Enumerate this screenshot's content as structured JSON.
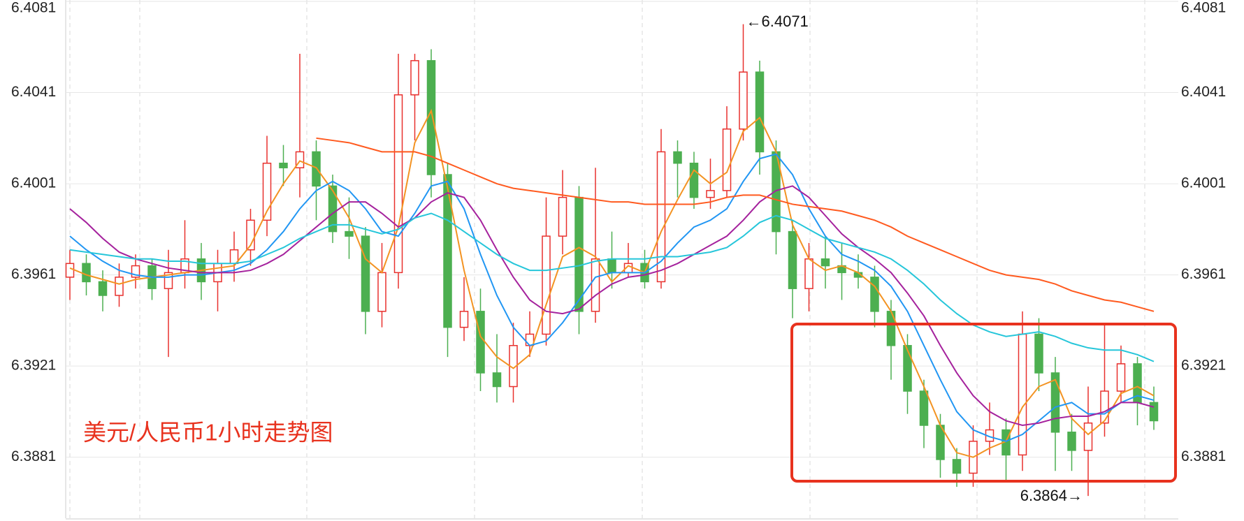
{
  "chart_data": {
    "type": "candlestick",
    "title": "美元/人民币1小时走势图",
    "ylim": [
      6.3857,
      6.4081
    ],
    "yticks": [
      6.3881,
      6.3921,
      6.3961,
      6.4001,
      6.4041,
      6.4081
    ],
    "grid": true,
    "up_color": "#e8312e",
    "down_color": "#4caf50",
    "open": [
      6.396,
      6.3966,
      6.3958,
      6.3952,
      6.396,
      6.3965,
      6.3955,
      6.3962,
      6.3968,
      6.3958,
      6.3966,
      6.3972,
      6.3985,
      6.401,
      6.4008,
      6.4015,
      6.4,
      6.398,
      6.3978,
      6.3945,
      6.3962,
      6.404,
      6.4055,
      6.4005,
      6.3938,
      6.3945,
      6.3918,
      6.3912,
      6.393,
      6.3935,
      6.3978,
      6.3995,
      6.3945,
      6.3968,
      6.3962,
      6.3966,
      6.3958,
      6.4015,
      6.401,
      6.3995,
      6.3998,
      6.4025,
      6.405,
      6.4015,
      6.398,
      6.3955,
      6.3968,
      6.3965,
      6.3962,
      6.396,
      6.3945,
      6.393,
      6.391,
      6.3895,
      6.388,
      6.3874,
      6.3888,
      6.3893,
      6.3882,
      6.3935,
      6.3918,
      6.3892,
      6.3884,
      6.3896,
      6.391,
      6.3922,
      6.3905
    ],
    "high": [
      6.3972,
      6.397,
      6.3963,
      6.3966,
      6.397,
      6.3968,
      6.3972,
      6.3985,
      6.3975,
      6.3972,
      6.398,
      6.399,
      6.4022,
      6.4018,
      6.4058,
      6.402,
      6.4005,
      6.3995,
      6.3982,
      6.3975,
      6.4058,
      6.4058,
      6.406,
      6.401,
      6.396,
      6.3955,
      6.3935,
      6.394,
      6.3945,
      6.3995,
      6.4007,
      6.4,
      6.4008,
      6.398,
      6.3975,
      6.3972,
      6.4025,
      6.402,
      6.4015,
      6.4012,
      6.4035,
      6.4071,
      6.4055,
      6.402,
      6.3985,
      6.3975,
      6.3978,
      6.3975,
      6.397,
      6.3965,
      6.395,
      6.3935,
      6.3915,
      6.39,
      6.3885,
      6.3895,
      6.3905,
      6.3898,
      6.3945,
      6.3942,
      6.3925,
      6.39,
      6.3912,
      6.394,
      6.393,
      6.3925,
      6.3912
    ],
    "low": [
      6.395,
      6.3952,
      6.3945,
      6.3947,
      6.3955,
      6.395,
      6.3925,
      6.3955,
      6.395,
      6.3945,
      6.3958,
      6.3965,
      6.3978,
      6.4,
      6.3995,
      6.3985,
      6.3975,
      6.3968,
      6.3935,
      6.3938,
      6.3955,
      6.402,
      6.3995,
      6.3925,
      6.3932,
      6.391,
      6.3905,
      6.3905,
      6.3925,
      6.393,
      6.397,
      6.3935,
      6.394,
      6.3955,
      6.396,
      6.3955,
      6.3955,
      6.3995,
      6.399,
      6.399,
      6.3995,
      6.402,
      6.4005,
      6.397,
      6.3942,
      6.3945,
      6.3955,
      6.395,
      6.3955,
      6.3938,
      6.3915,
      6.39,
      6.3885,
      6.3872,
      6.3868,
      6.3868,
      6.3882,
      6.387,
      6.3875,
      6.391,
      6.3875,
      6.3875,
      6.3864,
      6.389,
      6.3905,
      6.3895,
      6.3893
    ],
    "close": [
      6.3966,
      6.3958,
      6.3952,
      6.396,
      6.3965,
      6.3955,
      6.3962,
      6.3968,
      6.3958,
      6.3966,
      6.3972,
      6.3985,
      6.401,
      6.4008,
      6.4015,
      6.4,
      6.398,
      6.3978,
      6.3945,
      6.3962,
      6.404,
      6.4055,
      6.4005,
      6.3938,
      6.3945,
      6.3918,
      6.3912,
      6.393,
      6.3935,
      6.3978,
      6.3995,
      6.3945,
      6.3968,
      6.3962,
      6.3966,
      6.3958,
      6.4015,
      6.401,
      6.3995,
      6.3998,
      6.4025,
      6.405,
      6.4015,
      6.398,
      6.3955,
      6.3968,
      6.3965,
      6.3962,
      6.396,
      6.3945,
      6.393,
      6.391,
      6.3895,
      6.388,
      6.3874,
      6.3888,
      6.3893,
      6.3882,
      6.3935,
      6.3918,
      6.3892,
      6.3884,
      6.3896,
      6.391,
      6.3922,
      6.3905,
      6.3897
    ],
    "lines": [
      {
        "color": "#f39322",
        "values": [
          6.3964,
          6.3961,
          6.3959,
          6.3957,
          6.3959,
          6.396,
          6.3961,
          6.3962,
          6.3963,
          6.3964,
          6.3965,
          6.3974,
          6.3989,
          6.4001,
          6.4011,
          6.4008,
          6.3998,
          6.3986,
          6.3968,
          6.3962,
          6.3982,
          6.4019,
          6.4033,
          6.3999,
          6.3963,
          6.3934,
          6.3925,
          6.392,
          6.3926,
          6.3948,
          6.3969,
          6.3973,
          6.3969,
          6.3958,
          6.3965,
          6.3962,
          6.398,
          6.3994,
          6.4007,
          6.4001,
          6.4006,
          6.4024,
          6.403,
          6.4015,
          6.3983,
          6.3968,
          6.3963,
          6.3965,
          6.3962,
          6.3956,
          6.3945,
          6.3928,
          6.3912,
          6.3895,
          6.3883,
          6.3881,
          6.3885,
          6.3888,
          6.3903,
          6.3912,
          6.3915,
          6.3898,
          6.3891,
          6.3897,
          6.3909,
          6.3912,
          6.3908
        ]
      },
      {
        "color": "#2196f3",
        "values": [
          6.3978,
          6.3972,
          6.3967,
          6.3963,
          6.3961,
          6.396,
          6.396,
          6.3961,
          6.3961,
          6.3962,
          6.3963,
          6.3966,
          6.3972,
          6.398,
          6.399,
          6.3998,
          6.4002,
          6.3998,
          6.399,
          6.398,
          6.3978,
          6.3988,
          6.4,
          6.4002,
          6.399,
          6.397,
          6.3952,
          6.3938,
          6.393,
          6.3932,
          6.394,
          6.395,
          6.396,
          6.3962,
          6.3962,
          6.3962,
          6.3967,
          6.3975,
          6.3982,
          6.3985,
          6.399,
          6.4002,
          6.4012,
          6.4014,
          6.4005,
          6.399,
          6.3978,
          6.397,
          6.3967,
          6.3963,
          6.3956,
          6.3945,
          6.393,
          6.3915,
          6.3901,
          6.3893,
          6.389,
          6.3888,
          6.3891,
          6.3897,
          6.3903,
          6.3905,
          6.39,
          6.39,
          6.3905,
          6.3908,
          6.3906
        ]
      },
      {
        "color": "#a5229d",
        "values": [
          6.399,
          6.3984,
          6.3977,
          6.3971,
          6.3968,
          6.3966,
          6.3964,
          6.3963,
          6.3962,
          6.3962,
          6.3962,
          6.3963,
          6.3966,
          6.397,
          6.3976,
          6.3982,
          6.3988,
          6.3993,
          6.3993,
          6.3988,
          6.3982,
          6.3986,
          6.3993,
          6.3997,
          6.3995,
          6.3985,
          6.3972,
          6.396,
          6.395,
          6.3945,
          6.3944,
          6.3946,
          6.3952,
          6.3957,
          6.396,
          6.3961,
          6.3963,
          6.3966,
          6.397,
          6.3974,
          6.3978,
          6.3985,
          6.3993,
          6.3998,
          6.4,
          6.3995,
          6.3987,
          6.3979,
          6.3973,
          6.3968,
          6.3962,
          6.3953,
          6.3943,
          6.393,
          6.3918,
          6.3908,
          6.3901,
          6.3897,
          6.3895,
          6.3896,
          6.3898,
          6.3899,
          6.3899,
          6.3901,
          6.3905,
          6.3905,
          6.3903
        ]
      },
      {
        "color": "#26c6da",
        "values": [
          6.3972,
          6.3971,
          6.397,
          6.3969,
          6.3968,
          6.3968,
          6.3967,
          6.3967,
          6.3966,
          6.3966,
          6.3966,
          6.3967,
          6.397,
          6.3973,
          6.3977,
          6.398,
          6.3983,
          6.3983,
          6.3981,
          6.3979,
          6.3981,
          6.3986,
          6.3988,
          6.3985,
          6.398,
          6.3975,
          6.397,
          6.3966,
          6.3963,
          6.3963,
          6.3964,
          6.3965,
          6.3967,
          6.3968,
          6.3968,
          6.3968,
          6.3969,
          6.3969,
          6.397,
          6.3971,
          6.3973,
          6.3978,
          6.3984,
          6.3987,
          6.3985,
          6.3981,
          6.3977,
          6.3975,
          6.3973,
          6.3971,
          6.3968,
          6.3963,
          6.3957,
          6.395,
          6.3944,
          6.3939,
          6.3936,
          6.3934,
          6.3935,
          6.3936,
          6.3934,
          6.3931,
          6.3929,
          6.3928,
          6.3928,
          6.3926,
          6.3923
        ]
      },
      {
        "color": "#ff5a1f",
        "values": [
          null,
          null,
          null,
          null,
          null,
          null,
          null,
          null,
          null,
          null,
          null,
          null,
          null,
          null,
          null,
          6.4021,
          6.402,
          6.4019,
          6.4017,
          6.4015,
          6.4015,
          6.4015,
          6.4013,
          6.401,
          6.4007,
          6.4004,
          6.4001,
          6.3999,
          6.3998,
          6.3997,
          6.3996,
          6.3995,
          6.3994,
          6.3993,
          6.3993,
          6.3992,
          6.3992,
          6.3992,
          6.3992,
          6.3993,
          6.3995,
          6.3996,
          6.3996,
          6.3994,
          6.3992,
          6.3991,
          6.399,
          6.3989,
          6.3987,
          6.3985,
          6.3982,
          6.3978,
          6.3975,
          6.3972,
          6.3969,
          6.3966,
          6.3963,
          6.3961,
          6.396,
          6.3959,
          6.3957,
          6.3954,
          6.3952,
          6.395,
          6.3949,
          6.3947,
          6.3945
        ]
      }
    ],
    "annotations": [
      {
        "text": "←6.4071"
      },
      {
        "text": "6.3864→"
      }
    ]
  }
}
